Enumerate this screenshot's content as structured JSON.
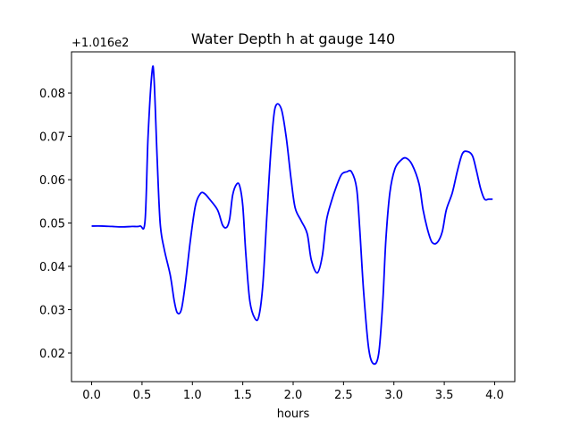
{
  "chart_data": {
    "type": "line",
    "title": "Water Depth h at gauge 140",
    "xlabel": "hours",
    "ylabel": "",
    "y_offset_label": "+1.016e2",
    "xlim": [
      -0.2,
      4.2
    ],
    "ylim": [
      0.0134,
      0.0895
    ],
    "xticks": [
      0.0,
      0.5,
      1.0,
      1.5,
      2.0,
      2.5,
      3.0,
      3.5,
      4.0
    ],
    "xtick_labels": [
      "0.0",
      "0.5",
      "1.0",
      "1.5",
      "2.0",
      "2.5",
      "3.0",
      "3.5",
      "4.0"
    ],
    "yticks": [
      0.02,
      0.03,
      0.04,
      0.05,
      0.06,
      0.07,
      0.08
    ],
    "ytick_labels": [
      "0.02",
      "0.03",
      "0.04",
      "0.05",
      "0.06",
      "0.07",
      "0.08"
    ],
    "grid": false,
    "series": [
      {
        "color": "#0000ff",
        "x": [
          0.0,
          0.1,
          0.2,
          0.3,
          0.4,
          0.48,
          0.53,
          0.56,
          0.6,
          0.62,
          0.65,
          0.68,
          0.72,
          0.78,
          0.82,
          0.85,
          0.89,
          0.93,
          0.98,
          1.03,
          1.08,
          1.12,
          1.17,
          1.25,
          1.3,
          1.34,
          1.37,
          1.4,
          1.44,
          1.47,
          1.5,
          1.53,
          1.57,
          1.62,
          1.66,
          1.7,
          1.74,
          1.78,
          1.82,
          1.88,
          1.93,
          1.98,
          2.02,
          2.08,
          2.14,
          2.18,
          2.24,
          2.29,
          2.33,
          2.38,
          2.43,
          2.48,
          2.53,
          2.58,
          2.63,
          2.66,
          2.7,
          2.75,
          2.8,
          2.85,
          2.89,
          2.92,
          2.96,
          3.01,
          3.07,
          3.12,
          3.18,
          3.25,
          3.29,
          3.34,
          3.38,
          3.43,
          3.48,
          3.52,
          3.58,
          3.63,
          3.68,
          3.73,
          3.78,
          3.82,
          3.86,
          3.9,
          3.94,
          3.98
        ],
        "y": [
          0.0493,
          0.0493,
          0.0492,
          0.0491,
          0.0492,
          0.0493,
          0.0505,
          0.07,
          0.085,
          0.083,
          0.065,
          0.05,
          0.044,
          0.038,
          0.032,
          0.0293,
          0.03,
          0.036,
          0.046,
          0.054,
          0.0568,
          0.0568,
          0.0555,
          0.053,
          0.0495,
          0.049,
          0.051,
          0.0565,
          0.059,
          0.0585,
          0.054,
          0.043,
          0.032,
          0.028,
          0.0285,
          0.036,
          0.052,
          0.067,
          0.0765,
          0.0765,
          0.07,
          0.06,
          0.0535,
          0.0505,
          0.0475,
          0.0415,
          0.0385,
          0.0425,
          0.0505,
          0.055,
          0.0585,
          0.0612,
          0.0618,
          0.0618,
          0.058,
          0.049,
          0.034,
          0.021,
          0.0175,
          0.02,
          0.032,
          0.046,
          0.057,
          0.0625,
          0.0645,
          0.065,
          0.0635,
          0.059,
          0.053,
          0.048,
          0.0455,
          0.0455,
          0.048,
          0.053,
          0.057,
          0.062,
          0.066,
          0.0665,
          0.0655,
          0.062,
          0.058,
          0.0555,
          0.0555,
          0.0555
        ]
      }
    ]
  }
}
